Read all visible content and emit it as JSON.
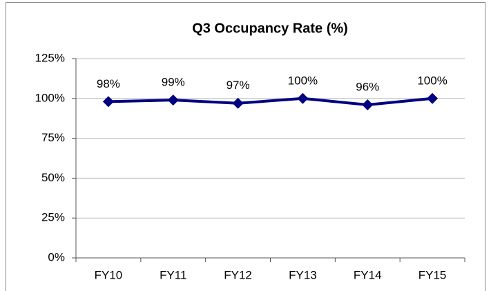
{
  "chart_data": {
    "type": "line",
    "title": "Q3 Occupancy Rate (%)",
    "categories": [
      "FY10",
      "FY11",
      "FY12",
      "FY13",
      "FY14",
      "FY15"
    ],
    "values": [
      98,
      99,
      97,
      100,
      96,
      100
    ],
    "value_labels": [
      "98%",
      "99%",
      "97%",
      "100%",
      "96%",
      "100%"
    ],
    "color": "#000080",
    "ylim": [
      0,
      125
    ],
    "yticks": [
      {
        "value": 0,
        "label": "0%"
      },
      {
        "value": 25,
        "label": "25%"
      },
      {
        "value": 50,
        "label": "50%"
      },
      {
        "value": 75,
        "label": "75%"
      },
      {
        "value": 100,
        "label": "100%"
      },
      {
        "value": 125,
        "label": "125%"
      }
    ],
    "grid": true
  }
}
